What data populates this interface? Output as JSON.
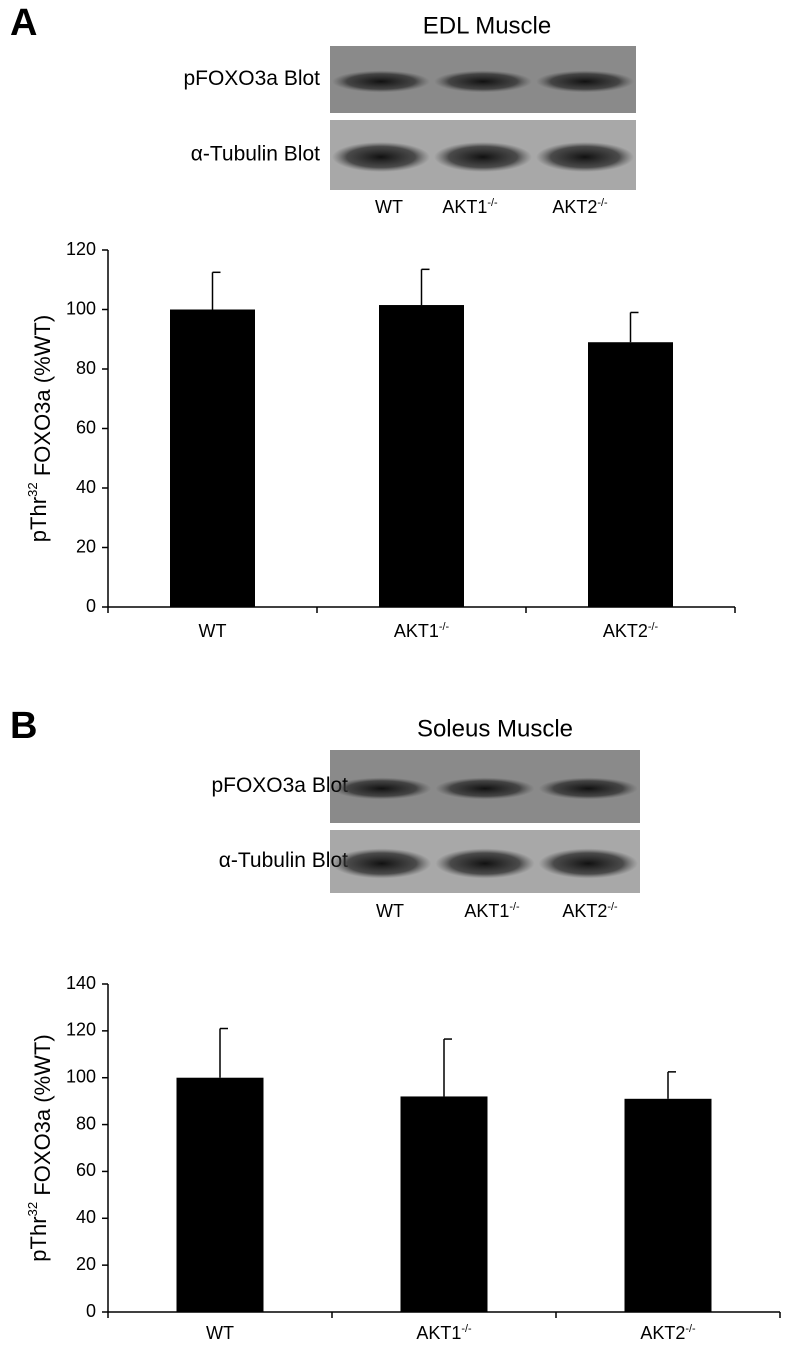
{
  "chart_data": [
    {
      "type": "bar",
      "panel": "A",
      "blot_title": "EDL Muscle",
      "blot_rows": [
        "pFOXO3a Blot",
        "α-Tubulin Blot"
      ],
      "lane_labels": [
        "WT",
        "AKT1-/-",
        "AKT2-/-"
      ],
      "ylabel": "pThr32 FOXO3a (%WT)",
      "categories": [
        "WT",
        "AKT1-/-",
        "AKT2-/-"
      ],
      "values": [
        100,
        101.5,
        89
      ],
      "errors": [
        12.5,
        12,
        10
      ],
      "color": "#000000",
      "ylim": [
        0,
        120
      ],
      "yticks": [
        0,
        20,
        40,
        60,
        80,
        100,
        120
      ]
    },
    {
      "type": "bar",
      "panel": "B",
      "blot_title": "Soleus Muscle",
      "blot_rows": [
        "pFOXO3a Blot",
        "α-Tubulin Blot"
      ],
      "lane_labels": [
        "WT",
        "AKT1-/-",
        "AKT2-/-"
      ],
      "ylabel": "pThr32 FOXO3a (%WT)",
      "categories": [
        "WT",
        "AKT1-/-",
        "AKT2-/-"
      ],
      "values": [
        100,
        92,
        91
      ],
      "errors": [
        21,
        24.5,
        11.5
      ],
      "color": "#000000",
      "ylim": [
        0,
        140
      ],
      "yticks": [
        0,
        20,
        40,
        60,
        80,
        100,
        120,
        140
      ]
    }
  ]
}
